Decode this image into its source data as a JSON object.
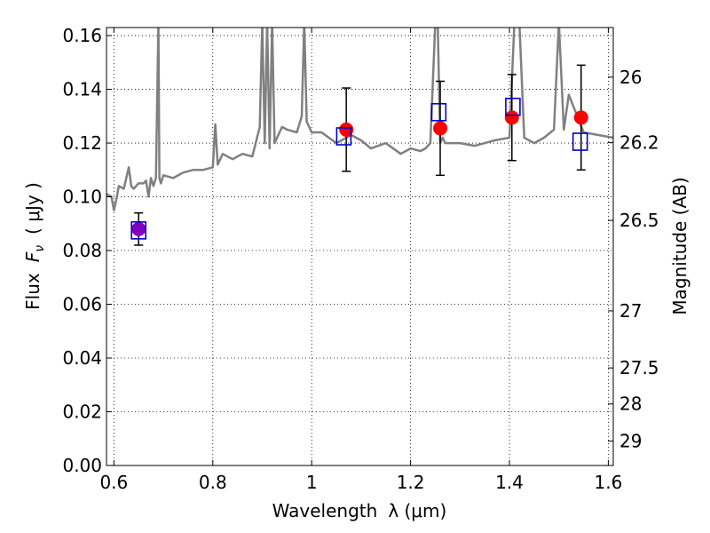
{
  "chart_data": {
    "type": "scatter",
    "xlabel": "Wavelength",
    "xlabel_symbol": "λ (μm)",
    "ylabel": "Flux",
    "ylabel_symbol": "F",
    "ylabel_symbol_sub": "ν",
    "ylabel_unit": "( μJy )",
    "y2label": "Magnitude (AB)",
    "xlim": [
      0.585,
      1.61
    ],
    "ylim": [
      0.0,
      0.163
    ],
    "grid": true,
    "x_ticks": [
      {
        "value": 0.6,
        "label": "0.6"
      },
      {
        "value": 0.8,
        "label": "0.8"
      },
      {
        "value": 1.0,
        "label": "1"
      },
      {
        "value": 1.2,
        "label": "1.2"
      },
      {
        "value": 1.4,
        "label": "1.4"
      },
      {
        "value": 1.6,
        "label": "1.6"
      }
    ],
    "y_ticks": [
      {
        "value": 0.0,
        "label": "0.00"
      },
      {
        "value": 0.02,
        "label": "0.02"
      },
      {
        "value": 0.04,
        "label": "0.04"
      },
      {
        "value": 0.06,
        "label": "0.06"
      },
      {
        "value": 0.08,
        "label": "0.08"
      },
      {
        "value": 0.1,
        "label": "0.10"
      },
      {
        "value": 0.12,
        "label": "0.12"
      },
      {
        "value": 0.14,
        "label": "0.14"
      },
      {
        "value": 0.16,
        "label": "0.16"
      }
    ],
    "y2_ticks": [
      {
        "value": 26.0,
        "label": "26"
      },
      {
        "value": 26.2,
        "label": "26.2"
      },
      {
        "value": 26.5,
        "label": "26.5"
      },
      {
        "value": 27.0,
        "label": "27"
      },
      {
        "value": 27.5,
        "label": "27.5"
      },
      {
        "value": 28.0,
        "label": "28"
      },
      {
        "value": 29.0,
        "label": "29"
      }
    ],
    "colors": {
      "spectrum": "#808080",
      "observed": "#ff0000",
      "model": "#0000cc",
      "overlap": "#8000c0",
      "errorbar": "#000000",
      "grid": "#000000"
    },
    "series": [
      {
        "kind": "line",
        "x": [
          0.585,
          0.595,
          0.6,
          0.605,
          0.61,
          0.62,
          0.63,
          0.635,
          0.64,
          0.65,
          0.66,
          0.665,
          0.67,
          0.675,
          0.68,
          0.685,
          0.69,
          0.692,
          0.695,
          0.7,
          0.72,
          0.74,
          0.76,
          0.78,
          0.8,
          0.805,
          0.81,
          0.82,
          0.84,
          0.86,
          0.88,
          0.895,
          0.9,
          0.905,
          0.91,
          0.915,
          0.92,
          0.925,
          0.93,
          0.94,
          0.95,
          0.97,
          0.98,
          0.985,
          0.99,
          1.0,
          1.02,
          1.05,
          1.08,
          1.1,
          1.12,
          1.15,
          1.18,
          1.2,
          1.22,
          1.23,
          1.24,
          1.25,
          1.255,
          1.26,
          1.265,
          1.27,
          1.3,
          1.33,
          1.35,
          1.37,
          1.4,
          1.41,
          1.42,
          1.43,
          1.45,
          1.47,
          1.49,
          1.5,
          1.51,
          1.52,
          1.55,
          1.58,
          1.61
        ],
        "y": [
          0.101,
          0.1,
          0.095,
          0.099,
          0.104,
          0.103,
          0.111,
          0.104,
          0.103,
          0.105,
          0.105,
          0.106,
          0.1,
          0.107,
          0.104,
          0.107,
          0.165,
          0.107,
          0.105,
          0.108,
          0.107,
          0.109,
          0.11,
          0.11,
          0.111,
          0.127,
          0.112,
          0.116,
          0.114,
          0.116,
          0.115,
          0.126,
          0.165,
          0.12,
          0.165,
          0.118,
          0.165,
          0.12,
          0.122,
          0.126,
          0.125,
          0.124,
          0.13,
          0.165,
          0.128,
          0.124,
          0.124,
          0.12,
          0.123,
          0.121,
          0.118,
          0.12,
          0.116,
          0.118,
          0.117,
          0.118,
          0.12,
          0.165,
          0.165,
          0.12,
          0.122,
          0.12,
          0.12,
          0.119,
          0.12,
          0.121,
          0.122,
          0.165,
          0.165,
          0.122,
          0.12,
          0.122,
          0.125,
          0.165,
          0.125,
          0.138,
          0.124,
          0.123,
          0.122
        ]
      },
      {
        "kind": "points",
        "marker": "filled-circle",
        "x": [
          0.65,
          1.07,
          1.26,
          1.405,
          1.545
        ],
        "y": [
          0.088,
          0.125,
          0.1255,
          0.1295,
          0.1295
        ],
        "yerr": [
          0.006,
          0.0155,
          0.0175,
          0.016,
          0.0195
        ]
      },
      {
        "kind": "points",
        "marker": "open-square",
        "x": [
          0.65,
          1.065,
          1.257,
          1.407,
          1.543
        ],
        "y": [
          0.0875,
          0.1225,
          0.1315,
          0.1335,
          0.1205
        ]
      }
    ]
  }
}
